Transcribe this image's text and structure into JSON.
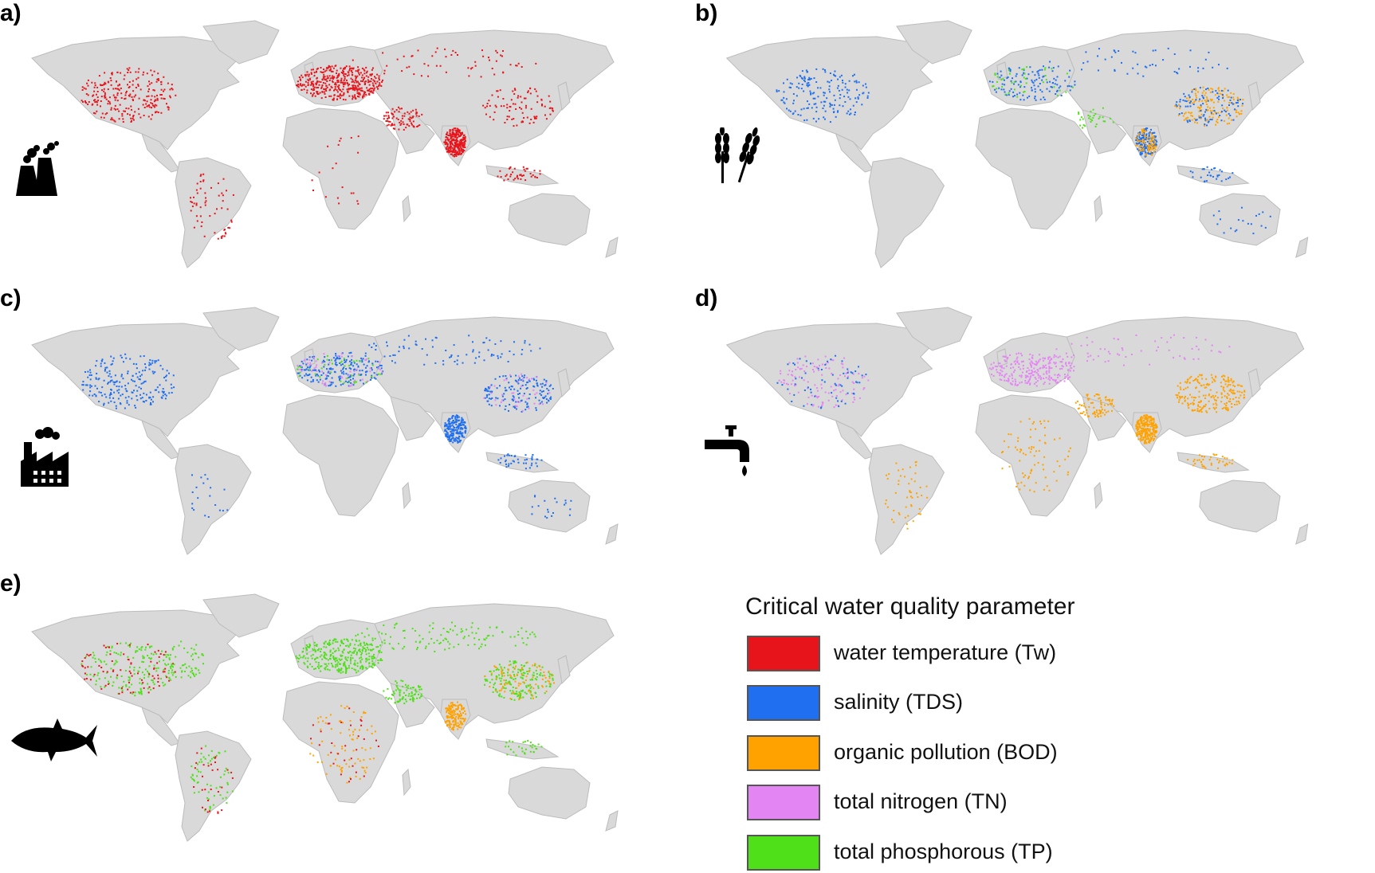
{
  "panels": [
    {
      "label": "a)",
      "icon": "power-plant-icon",
      "pattern": "temperature"
    },
    {
      "label": "b)",
      "icon": "wheat-icon",
      "pattern": "irrigation"
    },
    {
      "label": "c)",
      "icon": "factory-icon",
      "pattern": "industry"
    },
    {
      "label": "d)",
      "icon": "water-tap-icon",
      "pattern": "domestic"
    },
    {
      "label": "e)",
      "icon": "fish-icon",
      "pattern": "ecosystem"
    }
  ],
  "legend": {
    "title": "Critical water quality parameter",
    "items": [
      {
        "label": "water temperature (Tw)",
        "color": "#e8141b"
      },
      {
        "label": "salinity (TDS)",
        "color": "#1f6ff0"
      },
      {
        "label": "organic pollution (BOD)",
        "color": "#ffa200"
      },
      {
        "label": "total nitrogen (TN)",
        "color": "#e485f4"
      },
      {
        "label": "total phosphorous (TP)",
        "color": "#4fe01a"
      }
    ]
  },
  "colors": {
    "land": "#d9d9d9",
    "border": "#bcbcbc",
    "ocean": "#ffffff"
  }
}
